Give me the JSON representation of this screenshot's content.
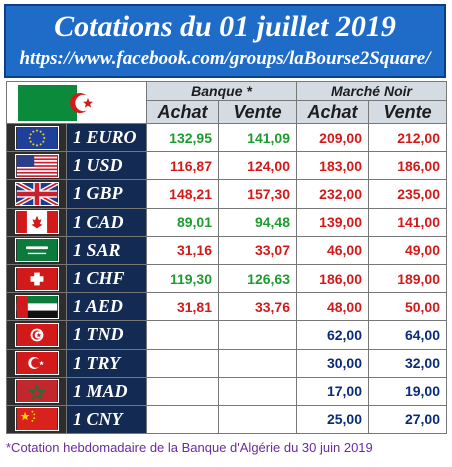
{
  "header": {
    "title": "Cotations du 01 juillet 2019",
    "url": "https://www.facebook.com/groups/laBourse2Square/"
  },
  "table": {
    "group_bank": "Banque *",
    "group_black": "Marché Noir",
    "col_buy": "Achat",
    "col_sell": "Vente",
    "rows": [
      {
        "currency": "1 EURO",
        "flag": "eu-flag-icon",
        "bank_buy": "132,95",
        "bank_sell": "141,09",
        "black_buy": "209,00",
        "black_sell": "212,00",
        "bank_buy_color": "green",
        "bank_sell_color": "green",
        "black_color": "red"
      },
      {
        "currency": "1 USD",
        "flag": "us-flag-icon",
        "bank_buy": "116,87",
        "bank_sell": "124,00",
        "black_buy": "183,00",
        "black_sell": "186,00",
        "bank_buy_color": "red",
        "bank_sell_color": "red",
        "black_color": "red"
      },
      {
        "currency": "1 GBP",
        "flag": "uk-flag-icon",
        "bank_buy": "148,21",
        "bank_sell": "157,30",
        "black_buy": "232,00",
        "black_sell": "235,00",
        "bank_buy_color": "red",
        "bank_sell_color": "red",
        "black_color": "red"
      },
      {
        "currency": "1 CAD",
        "flag": "canada-flag-icon",
        "bank_buy": "89,01",
        "bank_sell": "94,48",
        "black_buy": "139,00",
        "black_sell": "141,00",
        "bank_buy_color": "green",
        "bank_sell_color": "green",
        "black_color": "red"
      },
      {
        "currency": "1 SAR",
        "flag": "saudi-flag-icon",
        "bank_buy": "31,16",
        "bank_sell": "33,07",
        "black_buy": "46,00",
        "black_sell": "49,00",
        "bank_buy_color": "red",
        "bank_sell_color": "red",
        "black_color": "red"
      },
      {
        "currency": "1 CHF",
        "flag": "swiss-flag-icon",
        "bank_buy": "119,30",
        "bank_sell": "126,63",
        "black_buy": "186,00",
        "black_sell": "189,00",
        "bank_buy_color": "green",
        "bank_sell_color": "green",
        "black_color": "red"
      },
      {
        "currency": "1 AED",
        "flag": "uae-flag-icon",
        "bank_buy": "31,81",
        "bank_sell": "33,76",
        "black_buy": "48,00",
        "black_sell": "50,00",
        "bank_buy_color": "red",
        "bank_sell_color": "red",
        "black_color": "red"
      },
      {
        "currency": "1 TND",
        "flag": "tunisia-flag-icon",
        "bank_buy": "",
        "bank_sell": "",
        "black_buy": "62,00",
        "black_sell": "64,00",
        "bank_buy_color": "red",
        "bank_sell_color": "red",
        "black_color": "blue"
      },
      {
        "currency": "1 TRY",
        "flag": "turkey-flag-icon",
        "bank_buy": "",
        "bank_sell": "",
        "black_buy": "30,00",
        "black_sell": "32,00",
        "bank_buy_color": "red",
        "bank_sell_color": "red",
        "black_color": "blue"
      },
      {
        "currency": "1 MAD",
        "flag": "morocco-flag-icon",
        "bank_buy": "",
        "bank_sell": "",
        "black_buy": "17,00",
        "black_sell": "19,00",
        "bank_buy_color": "red",
        "bank_sell_color": "red",
        "black_color": "blue"
      },
      {
        "currency": "1 CNY",
        "flag": "china-flag-icon",
        "bank_buy": "",
        "bank_sell": "",
        "black_buy": "25,00",
        "black_sell": "27,00",
        "bank_buy_color": "red",
        "bank_sell_color": "red",
        "black_color": "blue"
      }
    ]
  },
  "footnote": "*Cotation hebdomadaire de la Banque d'Algérie du 30 juin 2019"
}
